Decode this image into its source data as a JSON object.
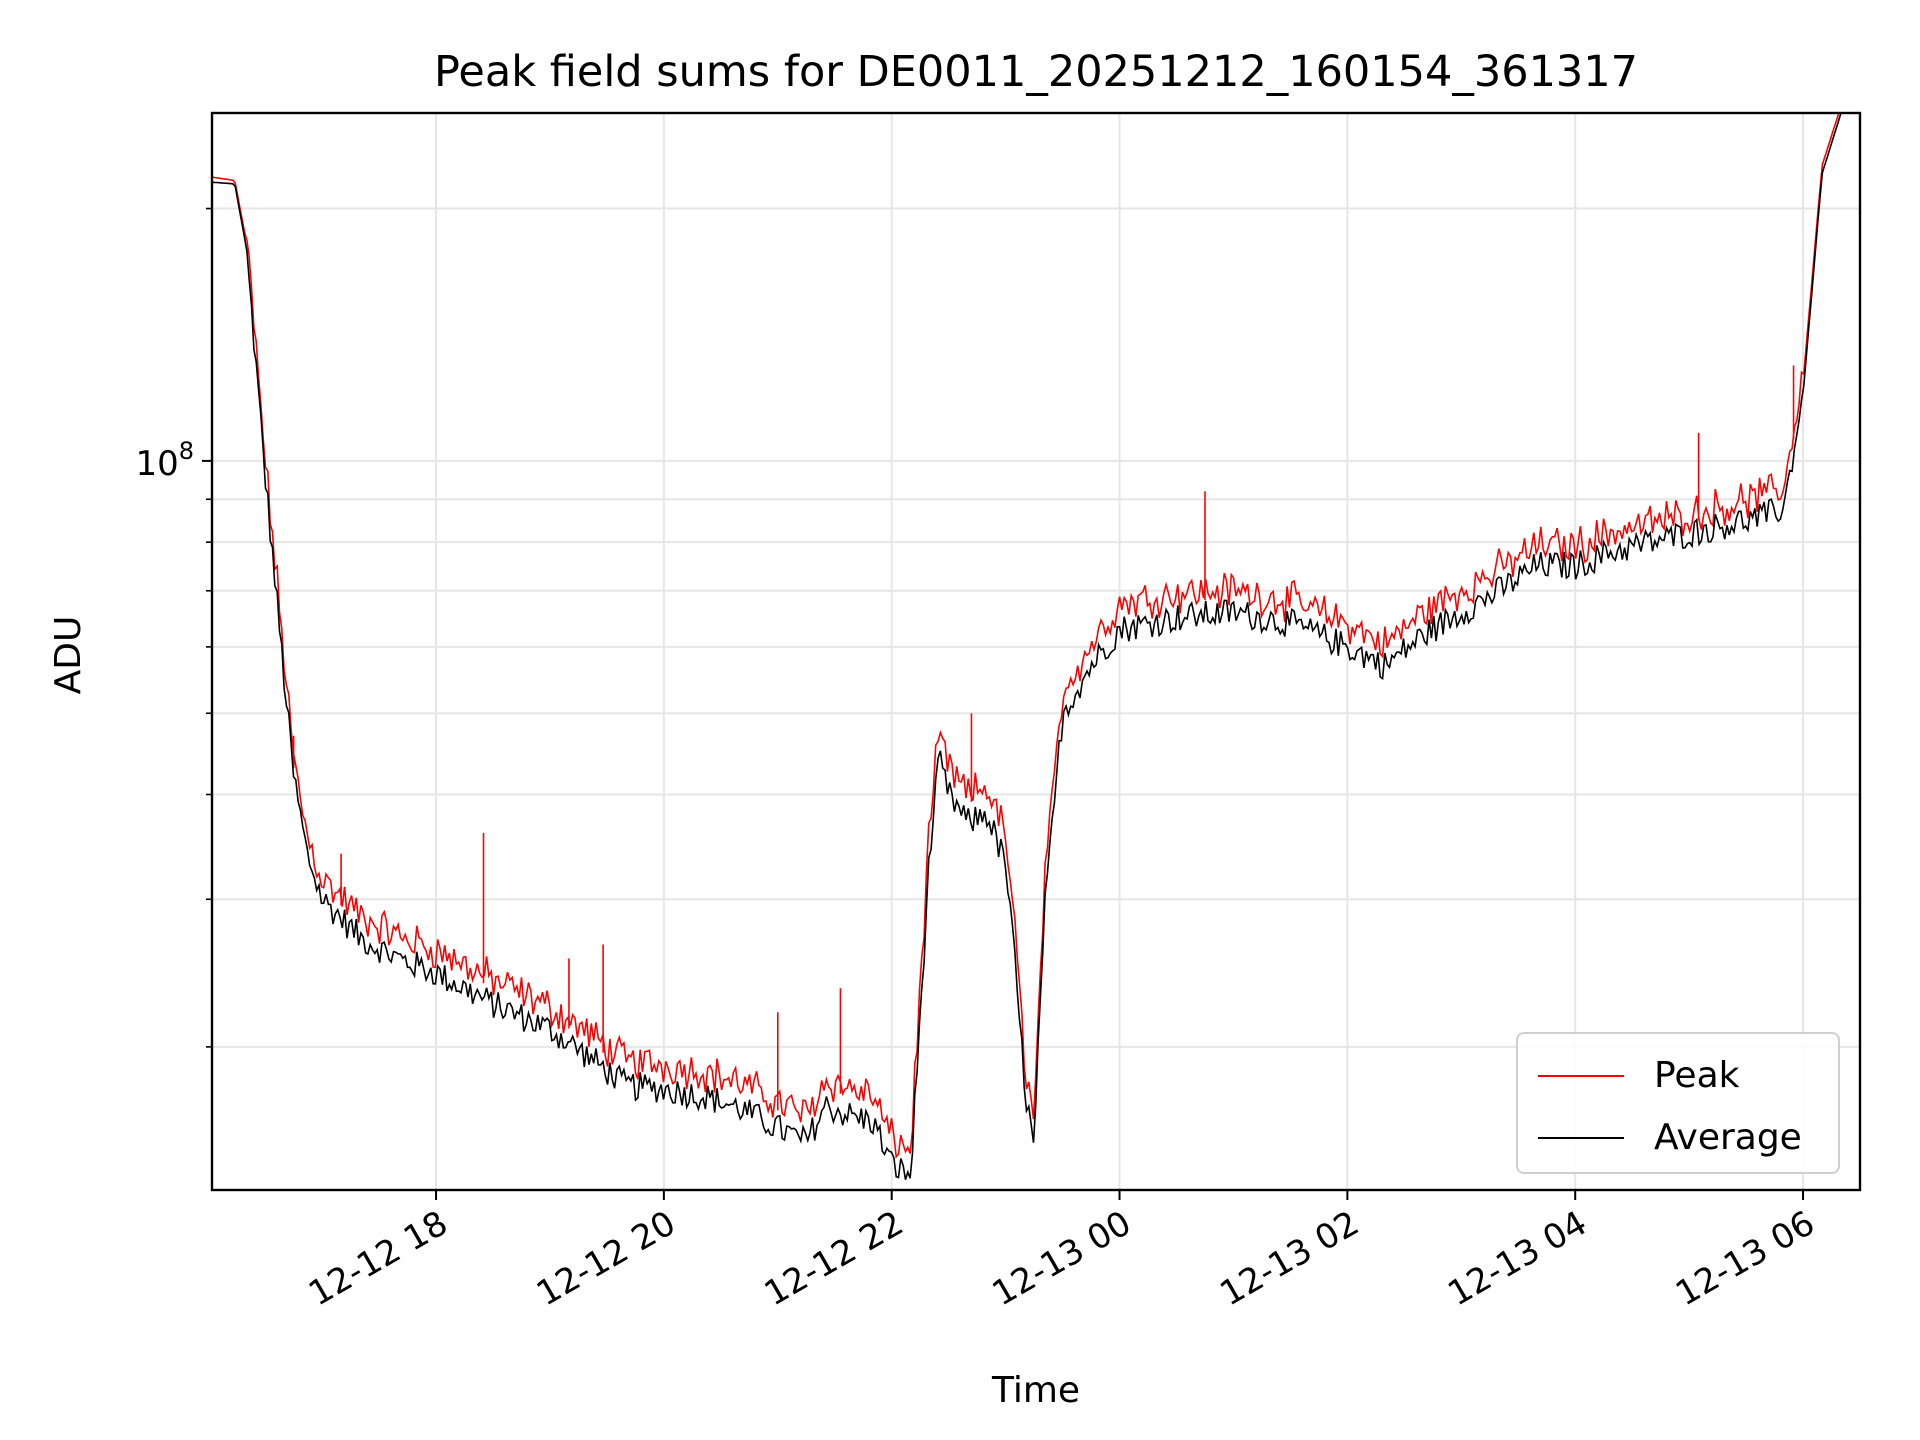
{
  "chart_data": {
    "type": "line",
    "title": "Peak field sums for DE0011_20251212_160154_361317",
    "xlabel": "Time",
    "ylabel": "ADU",
    "y_scale": "log",
    "ylim": [
      13500000.0,
      260000000.0
    ],
    "y_major_ticks": [
      {
        "value": 100000000.0,
        "base": "10",
        "exponent": "8"
      }
    ],
    "y_minor_ticks": [
      20000000.0,
      30000000.0,
      40000000.0,
      50000000.0,
      60000000.0,
      70000000.0,
      80000000.0,
      90000000.0,
      200000000.0
    ],
    "xlim": [
      "2025-12-12 16:02",
      "2025-12-13 06:30"
    ],
    "x_ticks": [
      {
        "time": "2025-12-12 18:00",
        "label": "12-12 18"
      },
      {
        "time": "2025-12-12 20:00",
        "label": "12-12 20"
      },
      {
        "time": "2025-12-12 22:00",
        "label": "12-12 22"
      },
      {
        "time": "2025-12-13 00:00",
        "label": "12-13 00"
      },
      {
        "time": "2025-12-13 02:00",
        "label": "12-13 02"
      },
      {
        "time": "2025-12-13 04:00",
        "label": "12-13 04"
      },
      {
        "time": "2025-12-13 06:00",
        "label": "12-13 06"
      }
    ],
    "grid": true,
    "legend_position": "lower-right",
    "series": [
      {
        "name": "Peak",
        "color": "#ff0000"
      },
      {
        "name": "Average",
        "color": "#000000"
      }
    ],
    "x": [
      "2025-12-12 16:02",
      "2025-12-12 16:14",
      "2025-12-12 16:20",
      "2025-12-12 16:30",
      "2025-12-12 16:40",
      "2025-12-12 16:45",
      "2025-12-12 16:52",
      "2025-12-12 17:00",
      "2025-12-12 17:10",
      "2025-12-12 17:20",
      "2025-12-12 17:40",
      "2025-12-12 18:00",
      "2025-12-12 18:30",
      "2025-12-12 19:00",
      "2025-12-12 19:20",
      "2025-12-12 19:40",
      "2025-12-12 20:00",
      "2025-12-12 20:20",
      "2025-12-12 20:40",
      "2025-12-12 21:00",
      "2025-12-12 21:15",
      "2025-12-12 21:25",
      "2025-12-12 21:40",
      "2025-12-12 21:50",
      "2025-12-12 22:00",
      "2025-12-12 22:10",
      "2025-12-12 22:20",
      "2025-12-12 22:25",
      "2025-12-12 22:30",
      "2025-12-12 22:40",
      "2025-12-12 22:50",
      "2025-12-12 23:00",
      "2025-12-12 23:05",
      "2025-12-12 23:10",
      "2025-12-12 23:15",
      "2025-12-12 23:20",
      "2025-12-12 23:30",
      "2025-12-12 23:45",
      "2025-12-13 00:00",
      "2025-12-13 00:30",
      "2025-12-13 01:00",
      "2025-12-13 01:30",
      "2025-12-13 02:00",
      "2025-12-13 02:20",
      "2025-12-13 02:40",
      "2025-12-13 03:00",
      "2025-12-13 03:20",
      "2025-12-13 03:40",
      "2025-12-13 04:00",
      "2025-12-13 04:20",
      "2025-12-13 04:40",
      "2025-12-13 05:00",
      "2025-12-13 05:20",
      "2025-12-13 05:40",
      "2025-12-13 05:50",
      "2025-12-13 06:00",
      "2025-12-13 06:10",
      "2025-12-13 06:20"
    ],
    "average": [
      215000000,
      214000000,
      180000000,
      96000000,
      55000000,
      42000000,
      34000000,
      30000000,
      28500000,
      27000000,
      25500000,
      24500000,
      22500000,
      21000000,
      19500000,
      18000000,
      17800000,
      17500000,
      16900000,
      16000000,
      15400000,
      17000000,
      16500000,
      16300000,
      14500000,
      14000000,
      34000000,
      44000000,
      40000000,
      37000000,
      38000000,
      33000000,
      25000000,
      18000000,
      15000000,
      28000000,
      50000000,
      57000000,
      63000000,
      65000000,
      66000000,
      64000000,
      60000000,
      57000000,
      62000000,
      66000000,
      70000000,
      75000000,
      75000000,
      78000000,
      80000000,
      82000000,
      84000000,
      86000000,
      88000000,
      120000000,
      220000000,
      260000000
    ],
    "peak": [
      218000000,
      216000000,
      183000000,
      98000000,
      57000000,
      43000000,
      35000000,
      31000000,
      29500000,
      28000000,
      26500000,
      25500000,
      23500000,
      21800000,
      20300000,
      18800000,
      18600000,
      18300000,
      17700000,
      16800000,
      16200000,
      17800000,
      17400000,
      17100000,
      15200000,
      14700000,
      36000000,
      46000000,
      42000000,
      39000000,
      40000000,
      35000000,
      26500000,
      19000000,
      15800000,
      29500000,
      52000000,
      59000000,
      66000000,
      68000000,
      68500000,
      66500000,
      62500000,
      59000000,
      64500000,
      68500000,
      72500000,
      77500000,
      77500000,
      80500000,
      82500000,
      84500000,
      86500000,
      89000000,
      91000000,
      124000000,
      225000000,
      265000000
    ],
    "spikes": [
      {
        "time": "2025-12-12 16:45",
        "peak": 47000000
      },
      {
        "time": "2025-12-12 17:10",
        "peak": 34000000
      },
      {
        "time": "2025-12-12 18:08",
        "peak": 25000000
      },
      {
        "time": "2025-12-12 18:25",
        "peak": 36000000
      },
      {
        "time": "2025-12-12 19:10",
        "peak": 25500000
      },
      {
        "time": "2025-12-12 19:28",
        "peak": 26500000
      },
      {
        "time": "2025-12-12 21:00",
        "peak": 22000000
      },
      {
        "time": "2025-12-12 21:33",
        "peak": 23500000
      },
      {
        "time": "2025-12-12 22:42",
        "peak": 50000000
      },
      {
        "time": "2025-12-13 00:45",
        "peak": 92000000
      },
      {
        "time": "2025-12-13 05:05",
        "peak": 108000000
      },
      {
        "time": "2025-12-13 05:55",
        "peak": 130000000
      }
    ]
  }
}
